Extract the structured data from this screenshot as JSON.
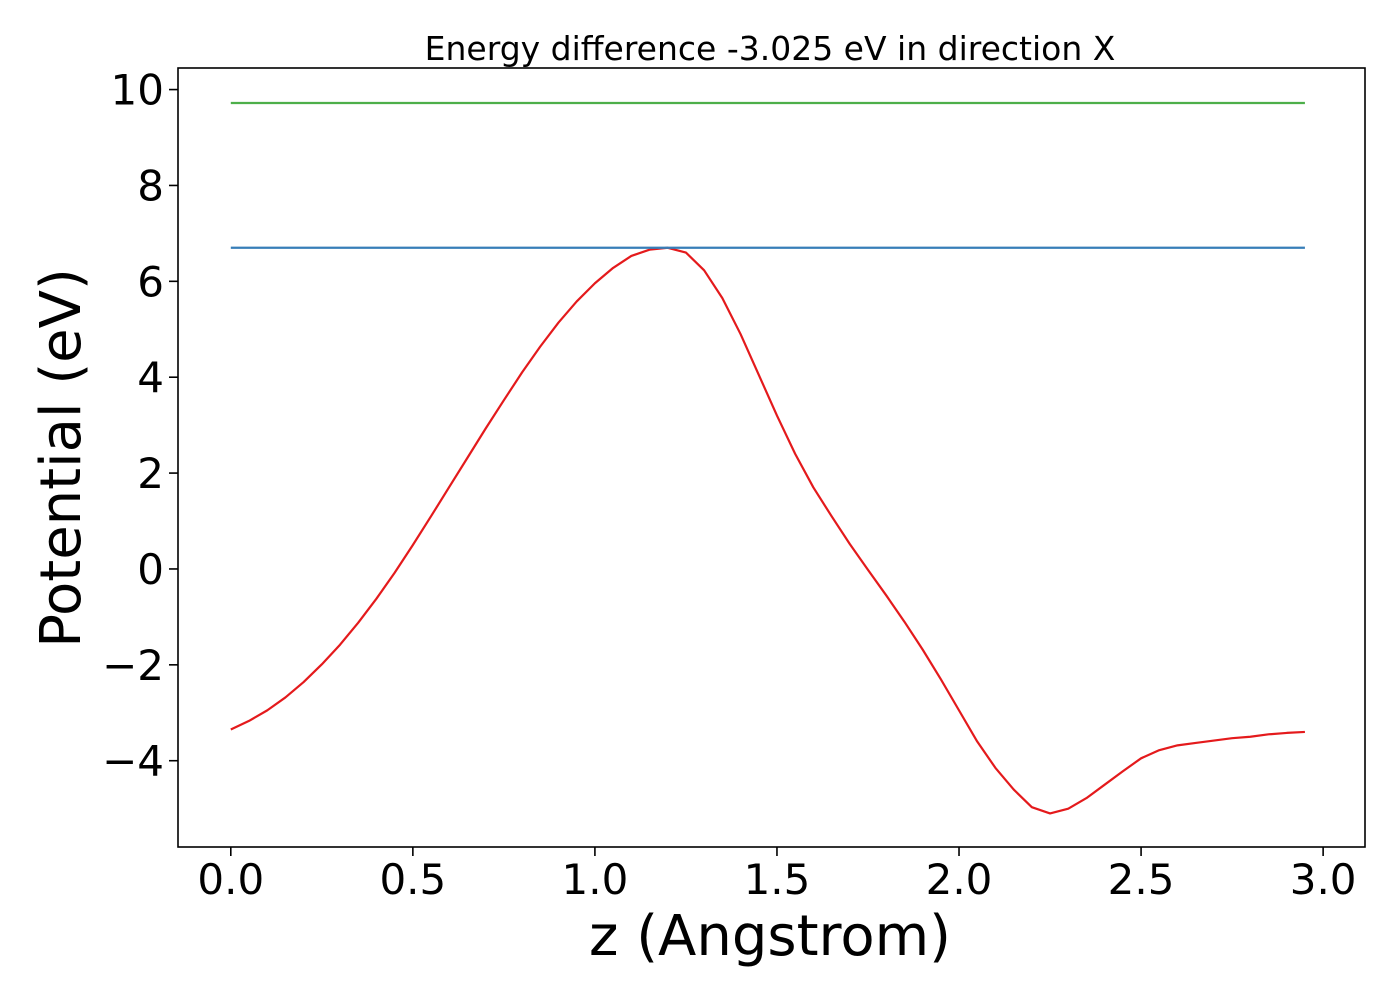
{
  "chart_data": {
    "type": "line",
    "title": "Energy difference -3.025 eV in direction X",
    "xlabel": "z (Angstrom)",
    "ylabel": "Potential (eV)",
    "xlim": [
      -0.145,
      3.115
    ],
    "ylim": [
      -5.8,
      10.45
    ],
    "xticks": [
      0.0,
      0.5,
      1.0,
      1.5,
      2.0,
      2.5,
      3.0
    ],
    "xtick_labels": [
      "0.0",
      "0.5",
      "1.0",
      "1.5",
      "2.0",
      "2.5",
      "3.0"
    ],
    "yticks": [
      -4,
      -2,
      0,
      2,
      4,
      6,
      8,
      10
    ],
    "ytick_labels": [
      "−4",
      "−2",
      "0",
      "2",
      "4",
      "6",
      "8",
      "10"
    ],
    "grid": false,
    "legend": null,
    "series": [
      {
        "color": "#e41a1c",
        "x": [
          0.0,
          0.05,
          0.1,
          0.15,
          0.2,
          0.25,
          0.3,
          0.35,
          0.4,
          0.45,
          0.5,
          0.55,
          0.6,
          0.65,
          0.7,
          0.75,
          0.8,
          0.85,
          0.9,
          0.95,
          1.0,
          1.05,
          1.1,
          1.15,
          1.2,
          1.25,
          1.3,
          1.35,
          1.4,
          1.45,
          1.5,
          1.55,
          1.6,
          1.65,
          1.7,
          1.75,
          1.8,
          1.85,
          1.9,
          1.95,
          2.0,
          2.05,
          2.1,
          2.15,
          2.2,
          2.25,
          2.3,
          2.35,
          2.4,
          2.45,
          2.5,
          2.55,
          2.6,
          2.65,
          2.7,
          2.75,
          2.8,
          2.85,
          2.9,
          2.95
        ],
        "y": [
          -3.35,
          -3.17,
          -2.95,
          -2.68,
          -2.36,
          -1.99,
          -1.58,
          -1.12,
          -0.62,
          -0.08,
          0.5,
          1.1,
          1.71,
          2.32,
          2.93,
          3.52,
          4.1,
          4.64,
          5.14,
          5.58,
          5.96,
          6.28,
          6.53,
          6.66,
          6.7,
          6.6,
          6.23,
          5.65,
          4.9,
          4.05,
          3.2,
          2.4,
          1.7,
          1.1,
          0.52,
          -0.02,
          -0.55,
          -1.1,
          -1.68,
          -2.3,
          -2.95,
          -3.6,
          -4.15,
          -4.6,
          -4.97,
          -5.1,
          -5.0,
          -4.78,
          -4.5,
          -4.22,
          -3.95,
          -3.78,
          -3.68,
          -3.63,
          -3.58,
          -3.53,
          -3.5,
          -3.45,
          -3.42,
          -3.4
        ]
      },
      {
        "color": "#377eb8",
        "x": [
          0.0,
          2.95
        ],
        "y": [
          6.7,
          6.7
        ]
      },
      {
        "color": "#4daf4a",
        "x": [
          0.0,
          2.95
        ],
        "y": [
          9.72,
          9.72
        ]
      }
    ]
  }
}
